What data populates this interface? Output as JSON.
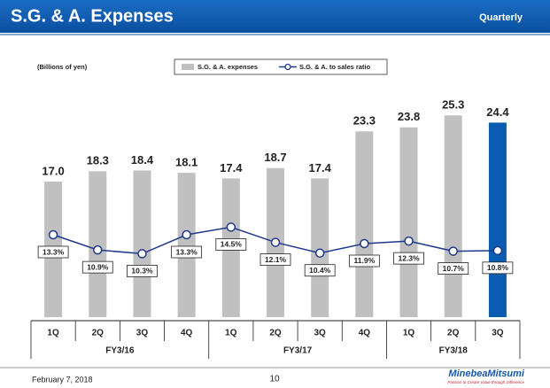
{
  "header": {
    "title": "S.G. & A. Expenses",
    "subtitle": "Quarterly"
  },
  "chart_data": {
    "type": "bar",
    "note": "(Billions of yen)",
    "categories": [
      "1Q",
      "2Q",
      "3Q",
      "4Q",
      "1Q",
      "2Q",
      "3Q",
      "4Q",
      "1Q",
      "2Q",
      "3Q"
    ],
    "category_groups": [
      "FY3/16",
      "FY3/17",
      "FY3/18"
    ],
    "series": [
      {
        "name": "S.G. & A. expenses",
        "type": "bar",
        "color": "#c0c0c0",
        "colors": [
          "#c0c0c0",
          "#c0c0c0",
          "#c0c0c0",
          "#c0c0c0",
          "#c0c0c0",
          "#c0c0c0",
          "#c0c0c0",
          "#c0c0c0",
          "#c0c0c0",
          "#c0c0c0",
          "#0a5cb0"
        ],
        "values": [
          17.0,
          18.3,
          18.4,
          18.1,
          17.4,
          18.7,
          17.4,
          23.3,
          23.8,
          25.3,
          24.4
        ],
        "value_labels": [
          "17.0",
          "18.3",
          "18.4",
          "18.1",
          "17.4",
          "18.7",
          "17.4",
          "23.3",
          "23.8",
          "25.3",
          "24.4"
        ]
      },
      {
        "name": "S.G. & A. to sales ratio",
        "type": "line",
        "color": "#1f3a8a",
        "values": [
          13.3,
          10.9,
          10.3,
          13.3,
          14.5,
          12.1,
          10.4,
          11.9,
          12.3,
          10.7,
          10.8
        ],
        "value_labels": [
          "13.3%",
          "10.9%",
          "10.3%",
          "13.3%",
          "14.5%",
          "12.1%",
          "10.4%",
          "11.9%",
          "12.3%",
          "10.7%",
          "10.8%"
        ]
      }
    ]
  },
  "footer": {
    "date": "February 7, 2018",
    "page": "10",
    "logo": "MinebeaMitsumi",
    "tagline": "Passion to Create Value through Difference"
  }
}
